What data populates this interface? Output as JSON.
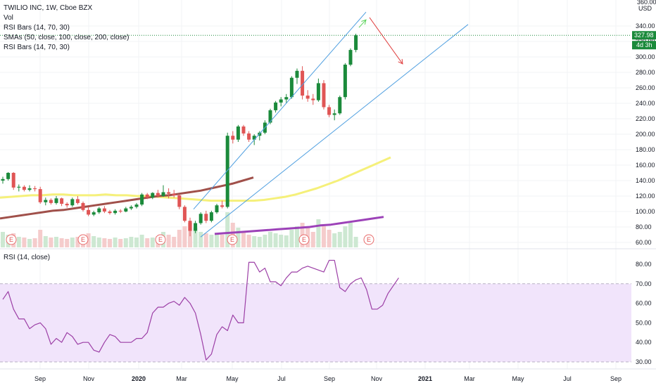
{
  "header": {
    "symbol_line": "TWILIO INC, 1W, Cboe BZX",
    "indicators": [
      "Vol",
      "RSI Bars (14, 70, 30)",
      "SMAs (50, close, 100, close, 200, close)",
      "RSI Bars (14, 70, 30)"
    ]
  },
  "price_axis": {
    "currency": "USD",
    "top_partial": "360.00",
    "ticks": [
      340,
      320,
      300,
      280,
      260,
      240,
      220,
      200,
      180,
      160,
      140,
      120,
      100,
      80,
      60
    ],
    "last_price": "327.98",
    "countdown": "4d 3h"
  },
  "rsi_pane": {
    "title": "RSI (14, close)",
    "ticks": [
      80,
      70,
      60,
      50,
      40,
      30
    ],
    "overbought": 70,
    "oversold": 30,
    "values": [
      62,
      66,
      57,
      52,
      52,
      47,
      49,
      50,
      47,
      39,
      42,
      40,
      45,
      43,
      39,
      40,
      40,
      36,
      35,
      40,
      44,
      43,
      40,
      40,
      40,
      42,
      42,
      45,
      55,
      58,
      58,
      60,
      61,
      59,
      63,
      60,
      55,
      44,
      31,
      34,
      44,
      48,
      46,
      54,
      50,
      50,
      81,
      81,
      76,
      78,
      71,
      71,
      69,
      73,
      76,
      76,
      78,
      79,
      78,
      77,
      76,
      82,
      82,
      68,
      66,
      70,
      72,
      73,
      67,
      57,
      57,
      59,
      65,
      69,
      73
    ]
  },
  "x_axis": {
    "labels": [
      "Sep",
      "Nov",
      "2020",
      "Mar",
      "May",
      "Jul",
      "Sep",
      "Nov",
      "2021",
      "Mar",
      "May",
      "Jul",
      "Sep"
    ]
  },
  "earnings_markers": [
    "E",
    "E",
    "E",
    "E",
    "E",
    "E"
  ],
  "colors": {
    "up": "#1b8a3b",
    "down": "#e05555",
    "sma50": "#f5f07a",
    "sma100": "#a0504a",
    "sma200": "#9c42b8",
    "rsi_line": "#9c3fa6",
    "rsi_band": "#f1e4fb",
    "channel": "#4f9fe0",
    "price_badge": "#1b8a3b",
    "arrow_up": "#5ad35a",
    "arrow_down": "#e04040"
  },
  "chart_data": {
    "type": "candlestick",
    "title": "TWILIO INC, 1W, Cboe BZX",
    "ylim": [
      50,
      360
    ],
    "candles": [
      {
        "o": 140,
        "h": 145,
        "l": 136,
        "c": 142
      },
      {
        "o": 142,
        "h": 151,
        "l": 140,
        "c": 150
      },
      {
        "o": 150,
        "h": 151,
        "l": 128,
        "c": 131
      },
      {
        "o": 131,
        "h": 135,
        "l": 126,
        "c": 132
      },
      {
        "o": 132,
        "h": 134,
        "l": 126,
        "c": 128
      },
      {
        "o": 128,
        "h": 134,
        "l": 126,
        "c": 130
      },
      {
        "o": 130,
        "h": 133,
        "l": 126,
        "c": 129
      },
      {
        "o": 129,
        "h": 132,
        "l": 110,
        "c": 112
      },
      {
        "o": 112,
        "h": 118,
        "l": 108,
        "c": 115
      },
      {
        "o": 115,
        "h": 117,
        "l": 109,
        "c": 111
      },
      {
        "o": 111,
        "h": 120,
        "l": 109,
        "c": 117
      },
      {
        "o": 117,
        "h": 118,
        "l": 107,
        "c": 110
      },
      {
        "o": 110,
        "h": 112,
        "l": 105,
        "c": 108
      },
      {
        "o": 108,
        "h": 118,
        "l": 106,
        "c": 116
      },
      {
        "o": 116,
        "h": 120,
        "l": 109,
        "c": 111
      },
      {
        "o": 111,
        "h": 113,
        "l": 100,
        "c": 102
      },
      {
        "o": 102,
        "h": 106,
        "l": 94,
        "c": 96
      },
      {
        "o": 96,
        "h": 101,
        "l": 94,
        "c": 99
      },
      {
        "o": 99,
        "h": 106,
        "l": 97,
        "c": 104
      },
      {
        "o": 104,
        "h": 107,
        "l": 98,
        "c": 100
      },
      {
        "o": 100,
        "h": 102,
        "l": 96,
        "c": 98
      },
      {
        "o": 98,
        "h": 103,
        "l": 96,
        "c": 101
      },
      {
        "o": 101,
        "h": 103,
        "l": 98,
        "c": 100
      },
      {
        "o": 100,
        "h": 106,
        "l": 99,
        "c": 104
      },
      {
        "o": 104,
        "h": 108,
        "l": 102,
        "c": 106
      },
      {
        "o": 106,
        "h": 111,
        "l": 104,
        "c": 109
      },
      {
        "o": 109,
        "h": 124,
        "l": 107,
        "c": 122
      },
      {
        "o": 122,
        "h": 124,
        "l": 116,
        "c": 118
      },
      {
        "o": 118,
        "h": 125,
        "l": 116,
        "c": 124
      },
      {
        "o": 124,
        "h": 128,
        "l": 118,
        "c": 120
      },
      {
        "o": 120,
        "h": 134,
        "l": 119,
        "c": 125
      },
      {
        "o": 125,
        "h": 130,
        "l": 117,
        "c": 123
      },
      {
        "o": 123,
        "h": 128,
        "l": 118,
        "c": 121
      },
      {
        "o": 121,
        "h": 122,
        "l": 103,
        "c": 106
      },
      {
        "o": 106,
        "h": 108,
        "l": 86,
        "c": 88
      },
      {
        "o": 88,
        "h": 92,
        "l": 68,
        "c": 75
      },
      {
        "o": 75,
        "h": 88,
        "l": 72,
        "c": 85
      },
      {
        "o": 85,
        "h": 99,
        "l": 83,
        "c": 97
      },
      {
        "o": 97,
        "h": 101,
        "l": 85,
        "c": 88
      },
      {
        "o": 88,
        "h": 101,
        "l": 86,
        "c": 99
      },
      {
        "o": 99,
        "h": 110,
        "l": 97,
        "c": 108
      },
      {
        "o": 108,
        "h": 114,
        "l": 104,
        "c": 106
      },
      {
        "o": 106,
        "h": 202,
        "l": 104,
        "c": 198
      },
      {
        "o": 198,
        "h": 204,
        "l": 188,
        "c": 193
      },
      {
        "o": 193,
        "h": 212,
        "l": 190,
        "c": 210
      },
      {
        "o": 210,
        "h": 212,
        "l": 198,
        "c": 201
      },
      {
        "o": 201,
        "h": 204,
        "l": 190,
        "c": 193
      },
      {
        "o": 193,
        "h": 200,
        "l": 186,
        "c": 198
      },
      {
        "o": 198,
        "h": 204,
        "l": 192,
        "c": 202
      },
      {
        "o": 202,
        "h": 218,
        "l": 200,
        "c": 215
      },
      {
        "o": 215,
        "h": 233,
        "l": 213,
        "c": 231
      },
      {
        "o": 231,
        "h": 243,
        "l": 228,
        "c": 241
      },
      {
        "o": 241,
        "h": 248,
        "l": 236,
        "c": 245
      },
      {
        "o": 245,
        "h": 252,
        "l": 240,
        "c": 248
      },
      {
        "o": 248,
        "h": 275,
        "l": 246,
        "c": 273
      },
      {
        "o": 273,
        "h": 285,
        "l": 265,
        "c": 282
      },
      {
        "o": 282,
        "h": 288,
        "l": 245,
        "c": 250
      },
      {
        "o": 250,
        "h": 257,
        "l": 242,
        "c": 246
      },
      {
        "o": 246,
        "h": 252,
        "l": 238,
        "c": 244
      },
      {
        "o": 244,
        "h": 272,
        "l": 242,
        "c": 266
      },
      {
        "o": 266,
        "h": 270,
        "l": 232,
        "c": 235
      },
      {
        "o": 235,
        "h": 238,
        "l": 222,
        "c": 225
      },
      {
        "o": 225,
        "h": 232,
        "l": 218,
        "c": 227
      },
      {
        "o": 227,
        "h": 250,
        "l": 225,
        "c": 248
      },
      {
        "o": 248,
        "h": 292,
        "l": 245,
        "c": 290
      },
      {
        "o": 290,
        "h": 311,
        "l": 288,
        "c": 309
      },
      {
        "o": 309,
        "h": 330,
        "l": 306,
        "c": 328
      }
    ],
    "volume": [
      22,
      18,
      20,
      15,
      14,
      12,
      13,
      25,
      16,
      14,
      15,
      13,
      12,
      14,
      15,
      18,
      20,
      16,
      14,
      13,
      12,
      14,
      12,
      13,
      15,
      14,
      18,
      13,
      14,
      16,
      22,
      18,
      15,
      25,
      30,
      35,
      28,
      22,
      20,
      18,
      20,
      18,
      50,
      35,
      28,
      22,
      18,
      16,
      15,
      18,
      22,
      20,
      18,
      17,
      25,
      30,
      35,
      28,
      22,
      40,
      30,
      25,
      20,
      22,
      30,
      35,
      15
    ],
    "sma50": [
      118,
      119,
      120,
      121,
      121,
      122,
      122,
      121,
      121,
      121,
      122,
      121,
      121,
      120,
      120,
      119,
      118,
      117,
      116,
      115,
      114,
      114,
      114,
      114,
      114,
      115,
      117,
      119,
      122,
      126,
      130,
      135,
      140,
      146,
      152,
      158,
      164,
      170
    ],
    "sma100": [
      91,
      93,
      95,
      97,
      99,
      101,
      102,
      104,
      106,
      108,
      110,
      112,
      114,
      116,
      118,
      120,
      121,
      123,
      125,
      127,
      130,
      133,
      136,
      140,
      144
    ],
    "sma200": [
      71,
      72,
      73,
      74,
      75,
      76,
      77,
      78,
      79,
      80,
      82,
      83,
      85,
      87,
      89,
      91,
      93
    ],
    "channel_upper": [
      [
        275,
        103
      ],
      [
        520,
        358
      ]
    ],
    "channel_lower": [
      [
        285,
        67
      ],
      [
        665,
        342
      ]
    ],
    "projection_up": [
      [
        510,
        338
      ],
      [
        520,
        348
      ]
    ],
    "projection_down": [
      [
        525,
        351
      ],
      [
        572,
        291
      ]
    ]
  }
}
